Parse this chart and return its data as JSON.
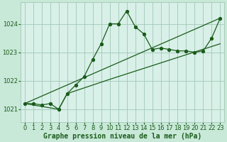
{
  "title": "Graphe pression niveau de la mer (hPa)",
  "bg_color": "#c8e8d8",
  "plot_bg_color": "#d8f0e8",
  "grid_color": "#a0c8b8",
  "line_color": "#1a5c1a",
  "xlim": [
    -0.5,
    23.5
  ],
  "ylim": [
    1020.55,
    1024.75
  ],
  "yticks": [
    1021,
    1022,
    1023,
    1024
  ],
  "xticks": [
    0,
    1,
    2,
    3,
    4,
    5,
    6,
    7,
    8,
    9,
    10,
    11,
    12,
    13,
    14,
    15,
    16,
    17,
    18,
    19,
    20,
    21,
    22,
    23
  ],
  "line1_x": [
    0,
    1,
    2,
    3,
    4,
    5,
    6,
    7,
    8,
    9,
    10,
    11,
    12,
    13,
    14,
    15,
    16,
    17,
    18,
    19,
    20,
    21,
    22,
    23
  ],
  "line1_y": [
    1021.2,
    1021.2,
    1021.15,
    1021.2,
    1021.0,
    1021.55,
    1021.85,
    1022.15,
    1022.75,
    1023.3,
    1024.0,
    1024.0,
    1024.45,
    1023.9,
    1023.65,
    1023.1,
    1023.15,
    1023.1,
    1023.05,
    1023.05,
    1023.0,
    1023.05,
    1023.5,
    1024.2
  ],
  "line2_x": [
    0,
    23
  ],
  "line2_y": [
    1021.2,
    1024.2
  ],
  "line3_x": [
    0,
    4,
    5,
    10,
    23
  ],
  "line3_y": [
    1021.2,
    1021.0,
    1021.55,
    1022.05,
    1023.3
  ],
  "marker_size": 2.8,
  "tick_fontsize": 6,
  "title_fontsize": 7,
  "linewidth": 0.9
}
